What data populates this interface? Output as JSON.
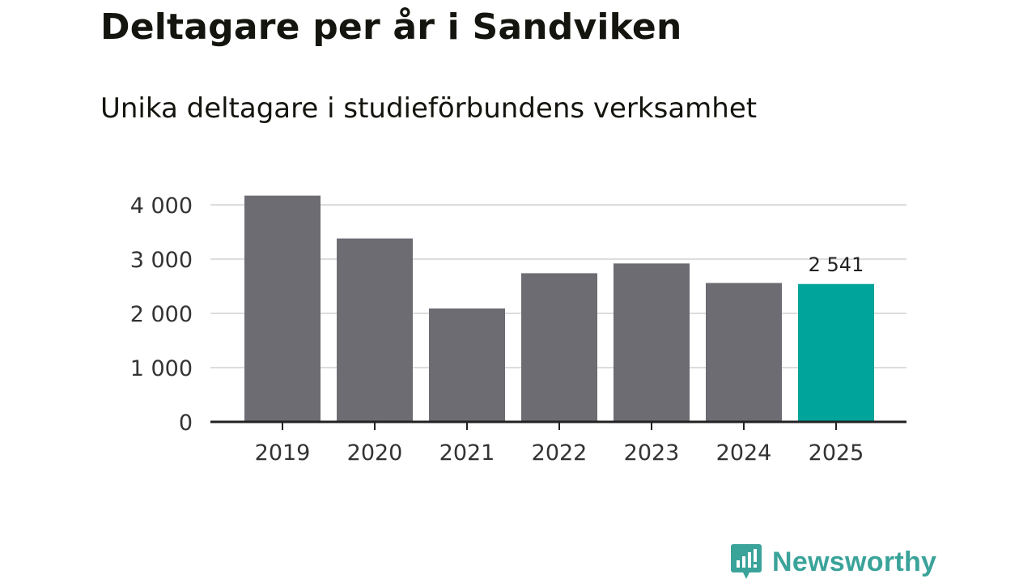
{
  "chart_data": {
    "type": "bar",
    "title": "Deltagare per år i Sandviken",
    "subtitle": "Unika deltagare i studieförbundens verksamhet",
    "categories": [
      "2019",
      "2020",
      "2021",
      "2022",
      "2023",
      "2024",
      "2025"
    ],
    "values": [
      4170,
      3380,
      2090,
      2740,
      2920,
      2560,
      2541
    ],
    "y_ticks": [
      0,
      1000,
      2000,
      3000,
      4000
    ],
    "y_tick_labels": [
      "0",
      "1 000",
      "2 000",
      "3 000",
      "4 000"
    ],
    "ylim": [
      0,
      4000
    ],
    "xlabel": "",
    "ylabel": "",
    "grid": true,
    "highlight_index": 6,
    "highlight_label": "2 541",
    "colors": {
      "bar": "#6d6c73",
      "highlight": "#00a49a",
      "grid": "#dddddd",
      "axis": "#222222"
    }
  },
  "brand": {
    "name": "Newsworthy",
    "icon": "newsworthy-logo-icon",
    "color": "#3aa39a"
  }
}
